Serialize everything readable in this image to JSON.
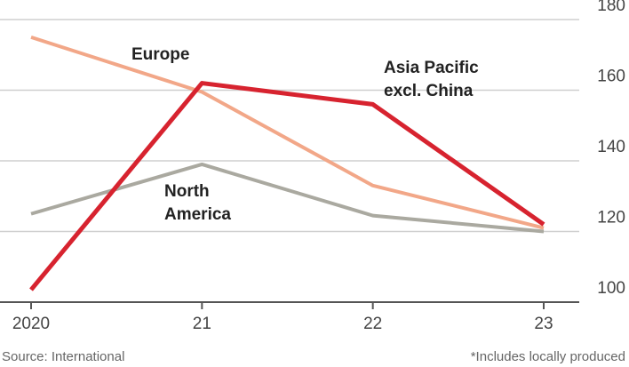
{
  "chart_data": {
    "type": "line",
    "categories": [
      "2020",
      "21",
      "22",
      "23"
    ],
    "series": [
      {
        "name": [
          "Europe"
        ],
        "color": "#f2a788",
        "values": [
          175,
          159.5,
          133,
          121
        ]
      },
      {
        "name": [
          "North",
          "America"
        ],
        "color": "#aaa9a0",
        "values": [
          125,
          139,
          124.5,
          120
        ]
      },
      {
        "name": [
          "Asia Pacific",
          "excl. China"
        ],
        "color": "#d7232f",
        "values": [
          103.5,
          162,
          156,
          122
        ]
      }
    ],
    "ylim": [
      100,
      180
    ],
    "yticks": [
      100,
      120,
      140,
      160,
      180
    ],
    "grid": true,
    "source": "Source: International",
    "note": "*Includes locally produced"
  }
}
